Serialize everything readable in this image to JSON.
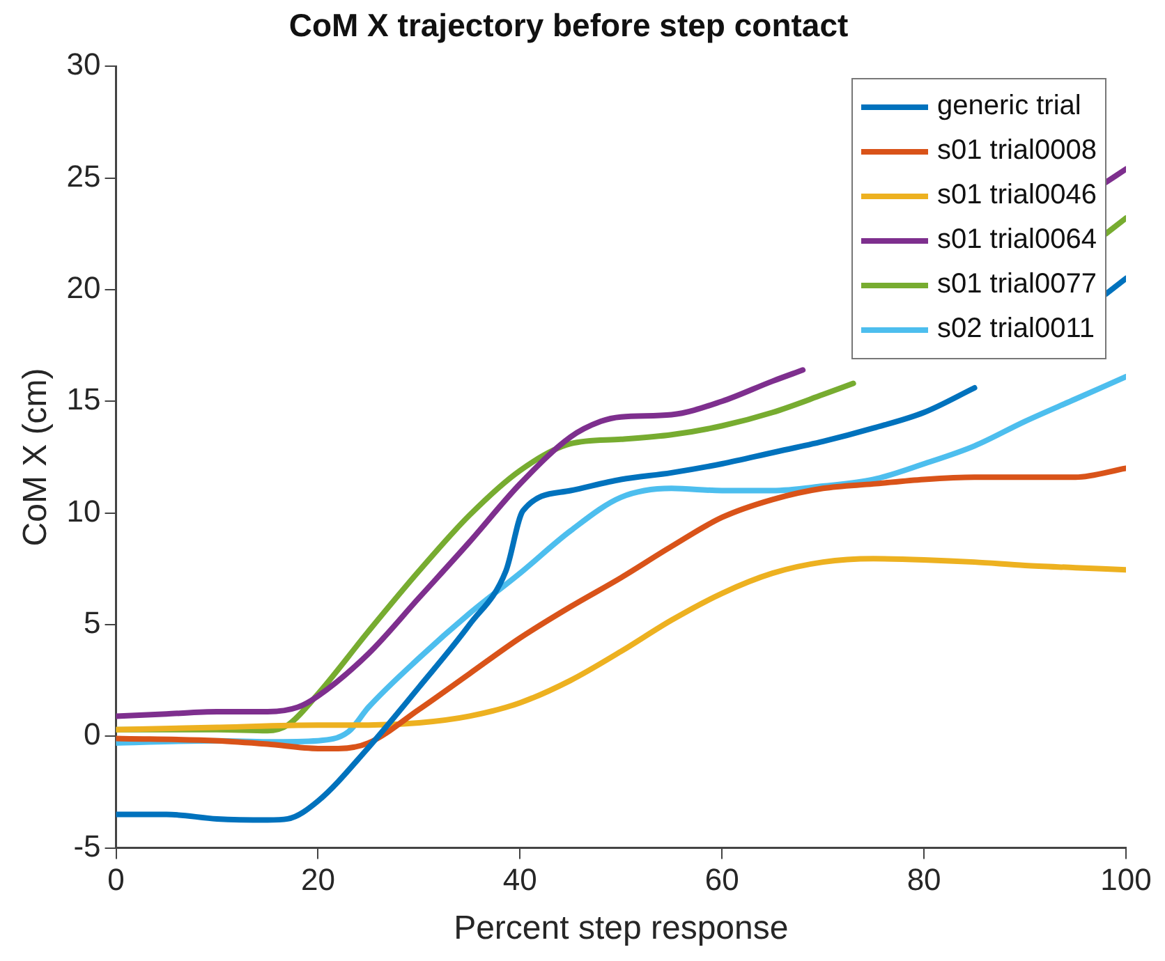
{
  "chart_data": {
    "type": "line",
    "title": "CoM X trajectory before step contact",
    "xlabel": "Percent step response",
    "ylabel": "CoM X (cm)",
    "xlim": [
      0,
      100
    ],
    "xticks": [
      0,
      20,
      40,
      60,
      80,
      100
    ],
    "ylim": [
      -5,
      30
    ],
    "yticks": [
      -5,
      0,
      5,
      10,
      15,
      20,
      25,
      30
    ],
    "grid": false,
    "legend": "top right",
    "line_style": "solid",
    "marker": "none",
    "series": [
      {
        "name": "generic trial",
        "color": "#0072bd",
        "x": [
          0,
          5,
          10,
          15,
          17,
          20,
          25,
          30,
          35,
          38.6,
          40.3,
          45,
          50,
          55,
          60,
          65,
          70,
          75,
          80,
          85,
          88,
          90,
          95,
          98,
          100
        ],
        "values": [
          -3.5,
          -3.5,
          -3.7,
          -3.75,
          -3.7,
          -2.9,
          -0.5,
          2.2,
          5,
          7.4,
          10.1,
          11,
          11.5,
          11.8,
          12.2,
          12.7,
          13.2,
          13.8,
          14.5,
          15.6,
          null,
          null,
          null,
          19.8,
          20.5
        ]
      },
      {
        "name": "s01 trial0008",
        "color": "#d95319",
        "x": [
          0,
          10,
          15,
          20,
          22,
          25,
          30,
          35,
          40,
          45,
          50,
          55,
          60,
          65,
          70,
          75,
          80,
          85,
          90,
          95,
          100
        ],
        "values": [
          -0.1,
          -0.2,
          -0.35,
          -0.55,
          -0.55,
          -0.3,
          1.2,
          2.8,
          4.4,
          5.8,
          7.1,
          8.5,
          9.8,
          10.6,
          11.1,
          11.3,
          11.5,
          11.6,
          11.6,
          11.6,
          12
        ]
      },
      {
        "name": "s01 trial0046",
        "color": "#edb120",
        "x": [
          0,
          10,
          20,
          25,
          30,
          35,
          40,
          45,
          50,
          55,
          60,
          65,
          70,
          75,
          80,
          85,
          90,
          95,
          100
        ],
        "values": [
          0.3,
          0.4,
          0.5,
          0.5,
          0.6,
          0.9,
          1.5,
          2.5,
          3.8,
          5.2,
          6.4,
          7.3,
          7.8,
          7.95,
          7.9,
          7.8,
          7.65,
          7.55,
          7.45
        ]
      },
      {
        "name": "s01 trial0064",
        "color": "#7e2f8e",
        "x": [
          0,
          5,
          10,
          15,
          18,
          20,
          25,
          30,
          35,
          40,
          45,
          48,
          50,
          55,
          60,
          65,
          68,
          75,
          85,
          98,
          100
        ],
        "values": [
          0.9,
          1,
          1.1,
          1.1,
          1.3,
          1.8,
          3.7,
          6.2,
          8.7,
          11.3,
          13.4,
          14.1,
          14.3,
          14.4,
          15,
          15.9,
          16.4,
          null,
          null,
          24.8,
          25.4
        ]
      },
      {
        "name": "s01 trial0077",
        "color": "#77ac30",
        "x": [
          0,
          10,
          15,
          17,
          20,
          25,
          30,
          35,
          40,
          45,
          50,
          55,
          60,
          65,
          70,
          73,
          80,
          90,
          98,
          100
        ],
        "values": [
          0.3,
          0.3,
          0.25,
          0.5,
          1.9,
          4.7,
          7.4,
          9.9,
          11.9,
          13.1,
          13.3,
          13.5,
          13.9,
          14.5,
          15.3,
          15.8,
          null,
          null,
          22.5,
          23.2
        ]
      },
      {
        "name": "s02 trial0011",
        "color": "#4dbeee",
        "x": [
          0,
          10,
          15,
          20,
          23,
          25,
          30,
          35,
          40,
          45,
          50,
          55,
          60,
          65,
          70,
          75,
          80,
          85,
          90,
          95,
          100
        ],
        "values": [
          -0.3,
          -0.2,
          -0.25,
          -0.2,
          0.2,
          1.3,
          3.5,
          5.5,
          7.3,
          9.2,
          10.7,
          11.1,
          11,
          11,
          11.2,
          11.5,
          12.2,
          13,
          14.1,
          15.1,
          16.1
        ]
      }
    ]
  }
}
